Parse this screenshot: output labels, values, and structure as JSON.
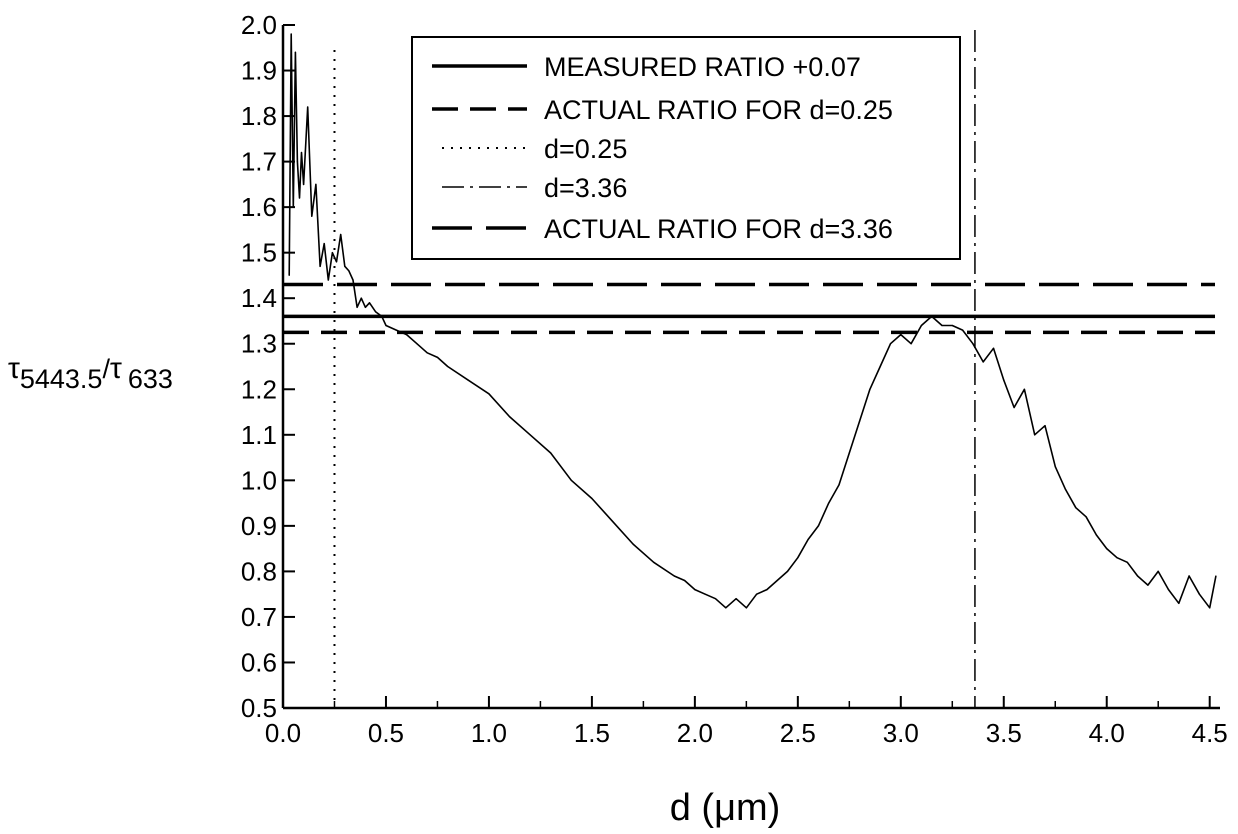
{
  "chart_data": {
    "type": "line",
    "xlabel": "d (μm)",
    "ylabel": {
      "tau": "τ",
      "numerator": "5443.5",
      "slash": "/",
      "tau2": "τ",
      "denominator": "633"
    },
    "xlim": [
      0,
      4.55
    ],
    "ylim": [
      0.5,
      2.0
    ],
    "xticks": [
      "0.0",
      "0.5",
      "1.0",
      "1.5",
      "2.0",
      "2.5",
      "3.0",
      "3.5",
      "4.0",
      "4.5"
    ],
    "yticks": [
      "0.5",
      "0.6",
      "0.7",
      "0.8",
      "0.9",
      "1.0",
      "1.1",
      "1.2",
      "1.3",
      "1.4",
      "1.5",
      "1.6",
      "1.7",
      "1.8",
      "1.9",
      "2.0"
    ],
    "grid": false,
    "legend_position": "top",
    "legend": [
      {
        "label": "MEASURED RATIO ",
        "label_pm": "+0.07",
        "style": "solid"
      },
      {
        "label": "ACTUAL RATIO FOR d=0.25",
        "style": "dashed"
      },
      {
        "label": "d=0.25",
        "style": "dotted"
      },
      {
        "label": "d=3.36",
        "style": "dashdot"
      },
      {
        "label": "ACTUAL RATIO FOR d=3.36",
        "style": "longdash"
      }
    ],
    "reference_lines": {
      "measured_ratio": 1.36,
      "actual_ratio_d025": 1.325,
      "actual_ratio_d336": 1.43,
      "d_025": 0.25,
      "d_336": 3.36
    },
    "series": [
      {
        "x": [
          0.03,
          0.04,
          0.05,
          0.06,
          0.07,
          0.08,
          0.09,
          0.1,
          0.12,
          0.14,
          0.16,
          0.18,
          0.2,
          0.22,
          0.24,
          0.26,
          0.28,
          0.3,
          0.32,
          0.34,
          0.36,
          0.38,
          0.4,
          0.42,
          0.45,
          0.48,
          0.5,
          0.55,
          0.6,
          0.65,
          0.7,
          0.75,
          0.8,
          0.9,
          1.0,
          1.1,
          1.2,
          1.3,
          1.4,
          1.5,
          1.6,
          1.7,
          1.8,
          1.9,
          1.95,
          2.0,
          2.05,
          2.1,
          2.15,
          2.2,
          2.25,
          2.3,
          2.35,
          2.4,
          2.45,
          2.5,
          2.55,
          2.6,
          2.65,
          2.7,
          2.75,
          2.8,
          2.85,
          2.9,
          2.95,
          3.0,
          3.05,
          3.1,
          3.15,
          3.2,
          3.25,
          3.3,
          3.35,
          3.4,
          3.45,
          3.5,
          3.55,
          3.6,
          3.65,
          3.7,
          3.75,
          3.8,
          3.85,
          3.9,
          3.95,
          4.0,
          4.05,
          4.1,
          4.15,
          4.2,
          4.25,
          4.3,
          4.35,
          4.4,
          4.45,
          4.5,
          4.53
        ],
        "y": [
          1.45,
          1.98,
          1.6,
          1.94,
          1.7,
          1.62,
          1.72,
          1.65,
          1.82,
          1.58,
          1.65,
          1.47,
          1.52,
          1.44,
          1.5,
          1.48,
          1.54,
          1.47,
          1.46,
          1.44,
          1.38,
          1.4,
          1.38,
          1.39,
          1.37,
          1.36,
          1.34,
          1.33,
          1.32,
          1.3,
          1.28,
          1.27,
          1.25,
          1.22,
          1.19,
          1.14,
          1.1,
          1.06,
          1.0,
          0.96,
          0.91,
          0.86,
          0.82,
          0.79,
          0.78,
          0.76,
          0.75,
          0.74,
          0.72,
          0.74,
          0.72,
          0.75,
          0.76,
          0.78,
          0.8,
          0.83,
          0.87,
          0.9,
          0.95,
          0.99,
          1.06,
          1.13,
          1.2,
          1.25,
          1.3,
          1.32,
          1.3,
          1.34,
          1.36,
          1.34,
          1.34,
          1.33,
          1.3,
          1.26,
          1.29,
          1.22,
          1.16,
          1.2,
          1.1,
          1.12,
          1.03,
          0.98,
          0.94,
          0.92,
          0.88,
          0.85,
          0.83,
          0.82,
          0.79,
          0.77,
          0.8,
          0.76,
          0.73,
          0.79,
          0.75,
          0.72,
          0.79
        ]
      }
    ]
  }
}
